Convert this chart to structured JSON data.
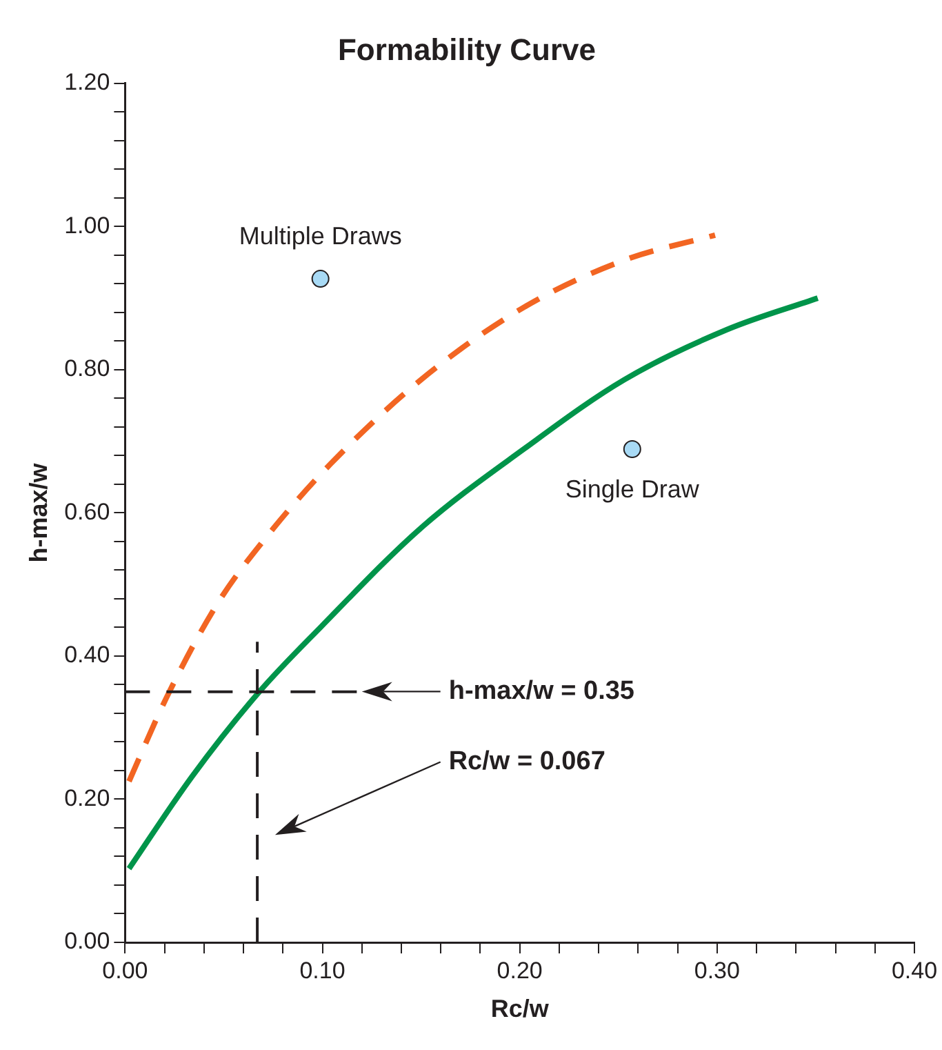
{
  "chart_data": {
    "type": "line",
    "title": "Formability Curve",
    "xlabel": "Rc/w",
    "ylabel": "h-max/w",
    "xlim": [
      0,
      0.4
    ],
    "xticks": [
      {
        "value": 0,
        "label": "0.00"
      },
      {
        "value": 0.02,
        "label": null
      },
      {
        "value": 0.04,
        "label": null
      },
      {
        "value": 0.06,
        "label": null
      },
      {
        "value": 0.08,
        "label": null
      },
      {
        "value": 0.1,
        "label": "0.10"
      },
      {
        "value": 0.12,
        "label": null
      },
      {
        "value": 0.14,
        "label": null
      },
      {
        "value": 0.16,
        "label": null
      },
      {
        "value": 0.18,
        "label": null
      },
      {
        "value": 0.2,
        "label": "0.20"
      },
      {
        "value": 0.22,
        "label": null
      },
      {
        "value": 0.24,
        "label": null
      },
      {
        "value": 0.26,
        "label": null
      },
      {
        "value": 0.28,
        "label": null
      },
      {
        "value": 0.3,
        "label": "0.30"
      },
      {
        "value": 0.32,
        "label": null
      },
      {
        "value": 0.34,
        "label": null
      },
      {
        "value": 0.36,
        "label": null
      },
      {
        "value": 0.38,
        "label": null
      },
      {
        "value": 0.4,
        "label": "0.40"
      }
    ],
    "ylim": [
      0,
      1.2
    ],
    "yticks": [
      {
        "value": 0,
        "label": "0.00"
      },
      {
        "value": 0.04,
        "label": null
      },
      {
        "value": 0.08,
        "label": null
      },
      {
        "value": 0.12,
        "label": null
      },
      {
        "value": 0.16,
        "label": null
      },
      {
        "value": 0.2,
        "label": "0.20"
      },
      {
        "value": 0.24,
        "label": null
      },
      {
        "value": 0.28,
        "label": null
      },
      {
        "value": 0.32,
        "label": null
      },
      {
        "value": 0.36,
        "label": null
      },
      {
        "value": 0.4,
        "label": "0.40"
      },
      {
        "value": 0.44,
        "label": null
      },
      {
        "value": 0.48,
        "label": null
      },
      {
        "value": 0.52,
        "label": null
      },
      {
        "value": 0.56,
        "label": null
      },
      {
        "value": 0.6,
        "label": "0.60"
      },
      {
        "value": 0.64,
        "label": null
      },
      {
        "value": 0.68,
        "label": null
      },
      {
        "value": 0.72,
        "label": null
      },
      {
        "value": 0.76,
        "label": null
      },
      {
        "value": 0.8,
        "label": "0.80"
      },
      {
        "value": 0.84,
        "label": null
      },
      {
        "value": 0.88,
        "label": null
      },
      {
        "value": 0.92,
        "label": null
      },
      {
        "value": 0.96,
        "label": null
      },
      {
        "value": 1.0,
        "label": "1.00"
      },
      {
        "value": 1.04,
        "label": null
      },
      {
        "value": 1.08,
        "label": null
      },
      {
        "value": 1.12,
        "label": null
      },
      {
        "value": 1.16,
        "label": null
      },
      {
        "value": 1.2,
        "label": "1.20"
      }
    ],
    "grid": false,
    "legend": false,
    "series": [
      {
        "color": "#f26522",
        "line_style": "dashed",
        "marker": "none",
        "x": [
          0.002,
          0.021,
          0.047,
          0.073,
          0.104,
          0.15,
          0.202,
          0.253,
          0.299
        ],
        "values": [
          0.225,
          0.342,
          0.474,
          0.571,
          0.668,
          0.786,
          0.887,
          0.953,
          0.988
        ]
      },
      {
        "color": "#00944a",
        "line_style": "solid",
        "marker": "none",
        "x": [
          0.002,
          0.034,
          0.068,
          0.099,
          0.15,
          0.202,
          0.253,
          0.305,
          0.351
        ],
        "values": [
          0.103,
          0.232,
          0.35,
          0.44,
          0.579,
          0.689,
          0.786,
          0.856,
          0.9
        ]
      },
      {
        "type": "scatter",
        "name": "Multiple Draws",
        "color": "#a8daf5",
        "marker": "circle",
        "x": [
          0.099
        ],
        "values": [
          0.927
        ]
      },
      {
        "type": "scatter",
        "name": "Single Draw",
        "color": "#a8daf5",
        "marker": "circle",
        "x": [
          0.257
        ],
        "values": [
          0.689
        ]
      }
    ],
    "ref_lines": [
      {
        "axis": "y",
        "value": 0.35,
        "line_style": "dashed",
        "color": "#231f20"
      },
      {
        "axis": "x",
        "value": 0.067,
        "line_style": "dashed",
        "color": "#231f20"
      }
    ],
    "annotations": [
      "h-max/w = 0.35",
      "Rc/w = 0.067"
    ]
  }
}
